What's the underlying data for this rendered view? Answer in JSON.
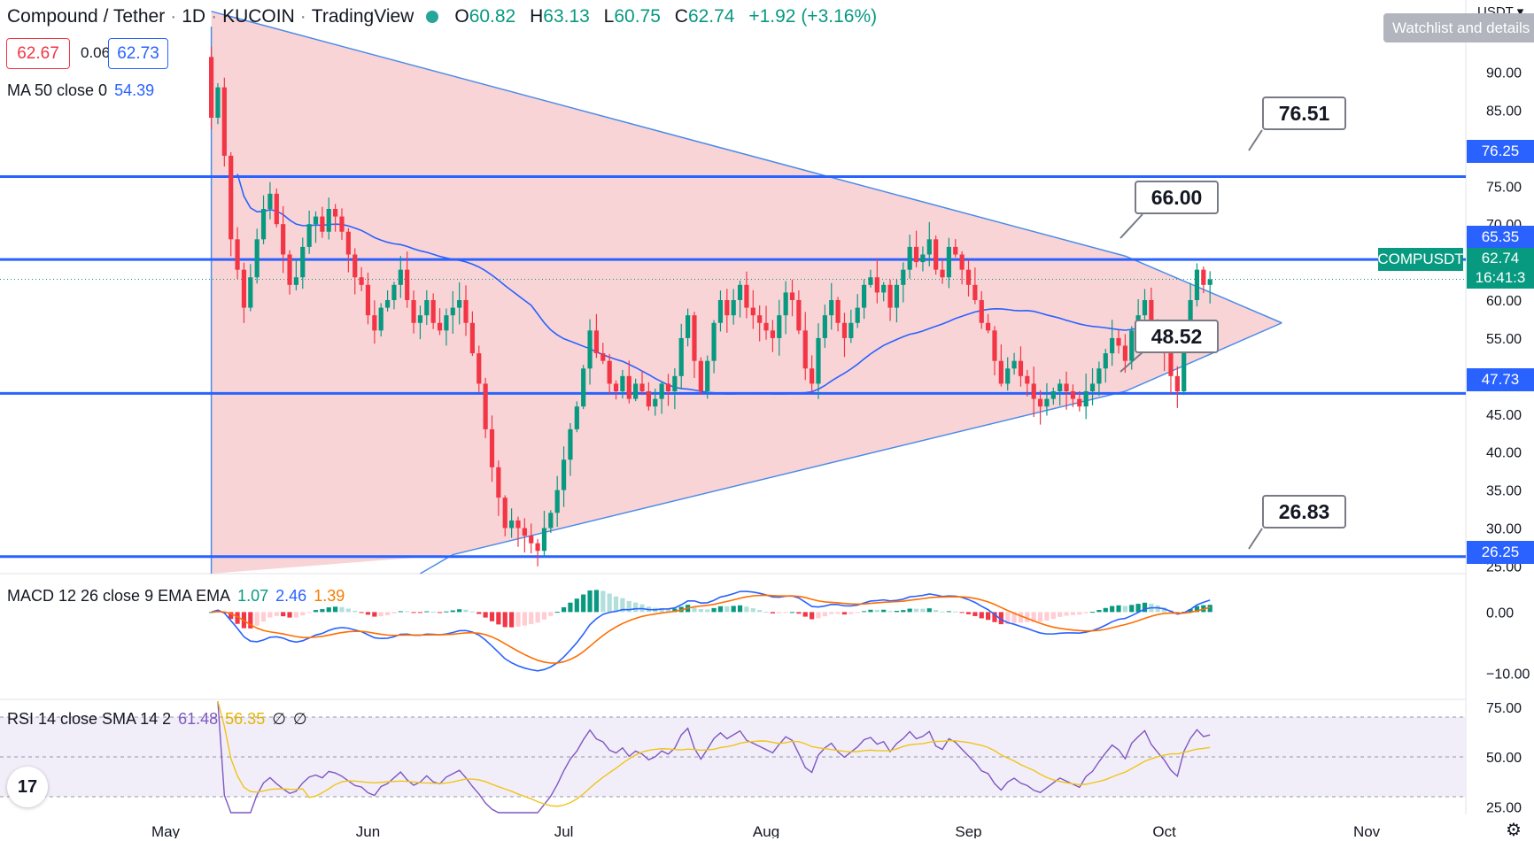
{
  "header": {
    "symbol": "Compound / Tether",
    "interval": "1D",
    "exchange": "KUCOIN",
    "platform": "TradingView",
    "ohlc": {
      "o_label": "O",
      "o": "60.82",
      "h_label": "H",
      "h": "63.13",
      "l_label": "L",
      "l": "60.75",
      "c_label": "C",
      "c": "62.74",
      "change": "+1.92 (+3.16%)"
    },
    "bid": "62.67",
    "spread": "0.06",
    "ask": "62.73",
    "ma_label": "MA 50 close 0",
    "ma_value": "54.39"
  },
  "right_panel": {
    "currency": "USDT",
    "watchlist": "Watchlist and details"
  },
  "axis_tags": {
    "symbol": "COMPUSDT",
    "last_price": "62.74",
    "countdown": "16:41:3",
    "levels": [
      "76.25",
      "65.35",
      "47.73",
      "26.25"
    ]
  },
  "callouts": [
    "76.51",
    "66.00",
    "48.52",
    "26.83"
  ],
  "macd": {
    "label": "MACD 12 26 close 9 EMA EMA",
    "v1": "1.07",
    "v2": "2.46",
    "v3": "1.39",
    "ticks": [
      "0.00",
      "−10.00"
    ]
  },
  "rsi": {
    "label": "RSI 14 close SMA 14 2",
    "v1": "61.48",
    "v2": "56.35",
    "v3": "∅",
    "v4": "∅",
    "ticks": [
      "75.00",
      "50.00",
      "25.00"
    ]
  },
  "logo": "17",
  "colors": {
    "up": "#089981",
    "down": "#f23645",
    "level": "#2962ff",
    "triangle_fill": "#f7c5ca",
    "ma": "#2962ff",
    "macd": "#2962ff",
    "signal": "#ff6d00",
    "rsi": "#7e57c2",
    "rsi_ma": "#f0c419"
  },
  "chart_data": [
    {
      "type": "candlestick",
      "symbol": "COMPUSDT",
      "ylim": [
        24,
        96
      ],
      "yticks": [
        25,
        30,
        35,
        40,
        45,
        50,
        55,
        60,
        65,
        70,
        75,
        80,
        85,
        90
      ],
      "xticks": [
        "May",
        "Jun",
        "Jul",
        "Aug",
        "Sep",
        "Oct",
        "Nov"
      ],
      "xtick_days": [
        0,
        31,
        61,
        92,
        123,
        153,
        184
      ],
      "start_day": 0,
      "close_series": [
        84,
        88,
        79,
        68,
        64,
        59,
        63,
        68,
        72,
        74,
        70,
        66,
        62,
        63,
        67,
        70,
        71,
        69,
        72,
        71,
        69,
        66,
        63,
        62,
        58,
        56,
        59,
        60,
        62,
        64,
        60,
        57,
        58,
        60,
        57,
        56,
        58,
        59,
        60,
        57,
        53,
        49,
        43,
        38,
        34,
        30,
        31,
        30,
        29,
        28,
        27,
        30,
        32,
        35,
        39,
        43,
        46,
        51,
        56,
        53,
        52,
        49,
        48,
        50,
        47,
        49,
        48,
        46,
        47,
        49,
        48,
        50,
        55,
        58,
        52,
        48,
        52,
        57,
        60,
        58,
        60,
        62,
        59,
        58,
        57,
        56,
        55,
        58,
        61,
        60,
        56,
        51,
        49,
        55,
        58,
        60,
        57,
        55,
        57,
        59,
        62,
        63,
        61,
        62,
        59,
        62,
        64,
        67,
        65,
        66,
        68,
        64,
        63,
        67,
        66,
        64,
        62,
        60,
        57,
        56,
        52,
        49,
        51,
        52,
        50,
        49,
        47,
        46,
        47,
        48,
        49,
        48,
        47,
        46,
        48,
        49,
        51,
        53,
        55,
        54,
        52,
        56,
        58,
        60,
        57,
        55,
        53,
        50,
        48,
        55,
        60,
        64,
        62,
        62.74
      ],
      "ma50_note": "MA 50 close line",
      "levels": [
        76.25,
        65.35,
        47.73,
        26.25
      ],
      "callout_values": [
        76.51,
        66.0,
        48.52,
        26.83
      ],
      "triangle": {
        "upper": [
          [
            7,
            98
          ],
          [
            147,
            65.8
          ],
          [
            171,
            57
          ]
        ],
        "lower": [
          [
            44,
            26.5
          ],
          [
            147,
            48
          ],
          [
            171,
            57
          ]
        ],
        "start_vline_day": 7
      }
    },
    {
      "type": "macd",
      "ylim": [
        -14,
        6
      ],
      "yticks": [
        0,
        -10
      ],
      "values": {
        "macd": 1.07,
        "signal": 2.46,
        "hist": 1.39
      }
    },
    {
      "type": "rsi",
      "ylim": [
        22,
        78
      ],
      "yticks": [
        75,
        50,
        25
      ],
      "bands": [
        70,
        30
      ],
      "values": {
        "rsi": 61.48,
        "rsi_ma": 56.35
      }
    }
  ]
}
